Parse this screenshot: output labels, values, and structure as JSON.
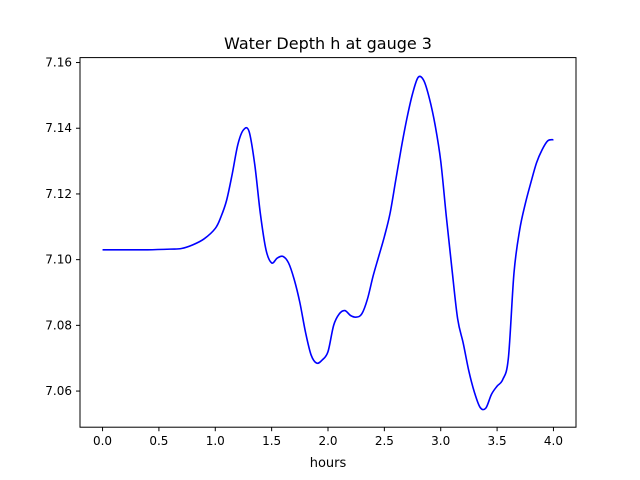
{
  "chart_data": {
    "type": "line",
    "title": "Water Depth h at gauge 3",
    "xlabel": "hours",
    "ylabel": "",
    "xlim": [
      -0.2,
      4.2
    ],
    "ylim": [
      7.049,
      7.1615
    ],
    "xticks": [
      0.0,
      0.5,
      1.0,
      1.5,
      2.0,
      2.5,
      3.0,
      3.5,
      4.0
    ],
    "xtick_labels": [
      "0.0",
      "0.5",
      "1.0",
      "1.5",
      "2.0",
      "2.5",
      "3.0",
      "3.5",
      "4.0"
    ],
    "yticks": [
      7.06,
      7.08,
      7.1,
      7.12,
      7.14,
      7.16
    ],
    "ytick_labels": [
      "7.06",
      "7.08",
      "7.10",
      "7.12",
      "7.14",
      "7.16"
    ],
    "grid": false,
    "series": [
      {
        "color": "#0000ff",
        "x": [
          0.0,
          0.2,
          0.4,
          0.6,
          0.7,
          0.8,
          0.9,
          1.0,
          1.05,
          1.1,
          1.15,
          1.2,
          1.25,
          1.3,
          1.35,
          1.4,
          1.45,
          1.5,
          1.55,
          1.6,
          1.65,
          1.7,
          1.75,
          1.8,
          1.85,
          1.9,
          1.95,
          2.0,
          2.05,
          2.1,
          2.15,
          2.2,
          2.25,
          2.3,
          2.35,
          2.4,
          2.45,
          2.5,
          2.55,
          2.6,
          2.65,
          2.7,
          2.75,
          2.8,
          2.85,
          2.9,
          2.95,
          3.0,
          3.05,
          3.1,
          3.15,
          3.2,
          3.25,
          3.3,
          3.35,
          3.4,
          3.45,
          3.5,
          3.55,
          3.6,
          3.65,
          3.7,
          3.75,
          3.8,
          3.85,
          3.9,
          3.95,
          4.0
        ],
        "y": [
          7.103,
          7.103,
          7.103,
          7.1032,
          7.1034,
          7.1045,
          7.1063,
          7.1095,
          7.113,
          7.118,
          7.126,
          7.135,
          7.1395,
          7.139,
          7.129,
          7.114,
          7.103,
          7.099,
          7.1005,
          7.101,
          7.099,
          7.094,
          7.087,
          7.078,
          7.071,
          7.0685,
          7.0695,
          7.072,
          7.08,
          7.0835,
          7.0845,
          7.083,
          7.0825,
          7.0835,
          7.088,
          7.095,
          7.101,
          7.107,
          7.114,
          7.124,
          7.134,
          7.143,
          7.1505,
          7.1555,
          7.1545,
          7.149,
          7.141,
          7.13,
          7.113,
          7.097,
          7.082,
          7.0745,
          7.066,
          7.0595,
          7.055,
          7.0548,
          7.059,
          7.0615,
          7.0635,
          7.07,
          7.096,
          7.109,
          7.117,
          7.1235,
          7.1295,
          7.1335,
          7.1362,
          7.1365
        ]
      }
    ]
  }
}
